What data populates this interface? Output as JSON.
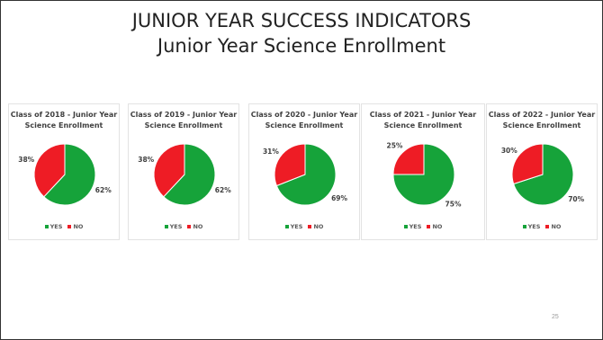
{
  "slide": {
    "title_line1": "JUNIOR YEAR SUCCESS INDICATORS",
    "title_line2": "Junior Year Science Enrollment",
    "page_number": "25"
  },
  "colors": {
    "yes": "#16a33a",
    "no": "#ee1c25"
  },
  "chart_data": [
    {
      "type": "pie",
      "title_line1": "Class of 2018 - Junior Year",
      "title_line2": "Science Enrollment",
      "labels": [
        "YES",
        "NO"
      ],
      "values": [
        62,
        38
      ],
      "data_labels": [
        "62%",
        "38%"
      ],
      "legend": "bottom"
    },
    {
      "type": "pie",
      "title_line1": "Class of 2019 - Junior Year",
      "title_line2": "Science Enrollment",
      "labels": [
        "YES",
        "NO"
      ],
      "values": [
        62,
        38
      ],
      "data_labels": [
        "62%",
        "38%"
      ],
      "legend": "bottom"
    },
    {
      "type": "pie",
      "title_line1": "Class of 2020 - Junior Year",
      "title_line2": "Science Enrollment",
      "labels": [
        "YES",
        "NO"
      ],
      "values": [
        69,
        31
      ],
      "data_labels": [
        "69%",
        "31%"
      ],
      "legend": "bottom"
    },
    {
      "type": "pie",
      "title_line1": "Class of 2021 - Junior Year",
      "title_line2": "Science Enrollment",
      "labels": [
        "YES",
        "NO"
      ],
      "values": [
        75,
        25
      ],
      "data_labels": [
        "75%",
        "25%"
      ],
      "legend": "bottom"
    },
    {
      "type": "pie",
      "title_line1": "Class of 2022 - Junior Year",
      "title_line2": "Science Enrollment",
      "labels": [
        "YES",
        "NO"
      ],
      "values": [
        70,
        30
      ],
      "data_labels": [
        "70%",
        "30%"
      ],
      "legend": "bottom"
    }
  ]
}
